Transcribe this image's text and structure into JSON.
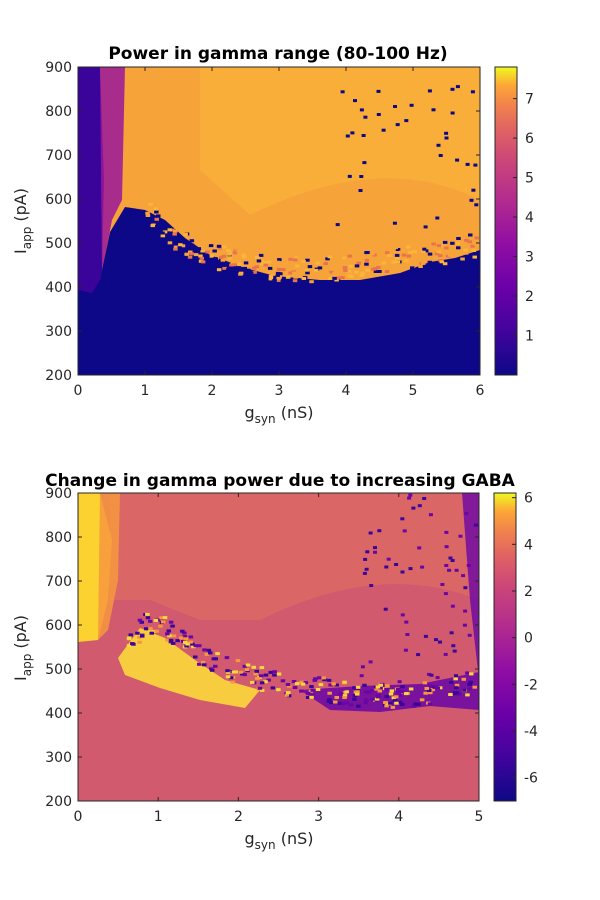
{
  "chart_data": [
    {
      "type": "heatmap",
      "title": "Power in gamma range (80-100 Hz)",
      "xlabel": "g",
      "xlabel_sub": "syn",
      "xlabel_unit": "(nS)",
      "ylabel": "I",
      "ylabel_sub": "app",
      "ylabel_unit": "(pA)",
      "xlim": [
        0,
        6
      ],
      "ylim": [
        200,
        900
      ],
      "xticks": [
        "0",
        "1",
        "2",
        "3",
        "4",
        "5",
        "6"
      ],
      "yticks": [
        "200",
        "300",
        "400",
        "500",
        "600",
        "700",
        "800",
        "900"
      ],
      "colormap": "plasma",
      "clim": [
        0,
        7.8
      ],
      "colorbar_ticks": [
        "1",
        "2",
        "3",
        "4",
        "5",
        "6",
        "7"
      ],
      "baseline_value": 0,
      "boundary": {
        "x": [
          0.15,
          0.25,
          0.35,
          0.5,
          0.7,
          0.85,
          1.0,
          1.2,
          1.5,
          2.0,
          2.5,
          3.0,
          3.5,
          4.0,
          4.5,
          5.0,
          5.5,
          6.0
        ],
        "y": [
          400,
          400,
          430,
          480,
          560,
          600,
          580,
          540,
          500,
          470,
          450,
          440,
          440,
          445,
          460,
          470,
          480,
          500
        ]
      },
      "regions": [
        {
          "name": "low-gsyn band",
          "x": [
            0,
            0.35
          ],
          "value": 0.4
        },
        {
          "name": "transition",
          "x": [
            0.35,
            0.9
          ],
          "value": 3.0
        },
        {
          "name": "above boundary",
          "x": [
            0.9,
            6.0
          ],
          "value": 5.8
        }
      ]
    },
    {
      "type": "heatmap",
      "title": "Change in gamma power due to increasing GABA",
      "xlabel": "g",
      "xlabel_sub": "syn",
      "xlabel_unit": "(nS)",
      "ylabel": "I",
      "ylabel_sub": "app",
      "ylabel_unit": "(pA)",
      "xlim": [
        0,
        5
      ],
      "ylim": [
        200,
        900
      ],
      "xticks": [
        "0",
        "1",
        "2",
        "3",
        "4",
        "5"
      ],
      "yticks": [
        "200",
        "300",
        "400",
        "500",
        "600",
        "700",
        "800",
        "900"
      ],
      "colormap": "plasma",
      "clim": [
        -7,
        6.2
      ],
      "colorbar_ticks": [
        "-6",
        "-4",
        "-2",
        "0",
        "2",
        "4",
        "6"
      ],
      "baseline_value": 0,
      "boundary": {
        "x": [
          0,
          0.3,
          0.5,
          0.8,
          1.0,
          1.3,
          1.6,
          2.0,
          2.5,
          3.0,
          3.5,
          4.0,
          4.5,
          5.0
        ],
        "y": [
          580,
          560,
          520,
          600,
          600,
          560,
          520,
          490,
          470,
          455,
          440,
          440,
          450,
          470
        ]
      },
      "regions": [
        {
          "name": "low-gsyn band",
          "x": [
            0,
            0.35
          ],
          "value": 4.5
        },
        {
          "name": "above boundary",
          "x": [
            0.35,
            5.0
          ],
          "value": 0.5
        },
        {
          "name": "boundary band",
          "x": [
            0.6,
            5.0
          ],
          "value": 5.5
        }
      ]
    }
  ]
}
